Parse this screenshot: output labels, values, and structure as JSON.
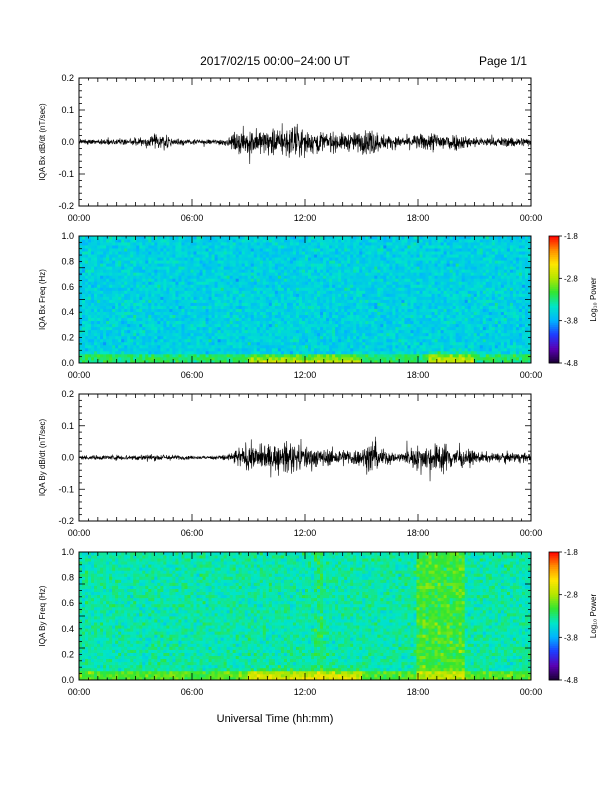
{
  "header": {
    "title": "2017/02/15  00:00−24:00 UT",
    "page": "Page 1/1"
  },
  "footer": {
    "xlabel": "Universal Time (hh:mm)"
  },
  "colors": {
    "trace": "#000000",
    "colormap": [
      "#1a0033",
      "#5a00b4",
      "#1e3cff",
      "#00b4ff",
      "#00e6c8",
      "#32e632",
      "#b4e600",
      "#ffe600",
      "#ff8c00",
      "#ff0000"
    ]
  },
  "chart_data": [
    {
      "type": "line",
      "ylabel": "IQA Bx dB/dt (nT/sec)",
      "ylim": [
        -0.2,
        0.2
      ],
      "yticks": [
        "0.2",
        "0.1",
        "0.0",
        "-0.1",
        "-0.2"
      ],
      "ytick_values": [
        0.2,
        0.1,
        0.0,
        -0.1,
        -0.2
      ],
      "xlim": [
        "00:00",
        "24:00"
      ],
      "xticks": [
        "00:00",
        "06:00",
        "12:00",
        "18:00",
        "00:00"
      ],
      "series": [
        {
          "envelope_x_hours": [
            0,
            2,
            3.5,
            4.3,
            5,
            6,
            7,
            8,
            8.5,
            9,
            10,
            11,
            11.5,
            12,
            13,
            14,
            15,
            15.5,
            16,
            17,
            18,
            19,
            20,
            21,
            22,
            23,
            24
          ],
          "envelope_amplitude": [
            0.015,
            0.015,
            0.02,
            0.04,
            0.02,
            0.012,
            0.012,
            0.02,
            0.06,
            0.06,
            0.06,
            0.07,
            0.08,
            0.06,
            0.05,
            0.04,
            0.05,
            0.07,
            0.04,
            0.025,
            0.035,
            0.05,
            0.04,
            0.025,
            0.02,
            0.025,
            0.02
          ]
        }
      ]
    },
    {
      "type": "heatmap",
      "ylabel": "IQA Bx Freq (Hz)",
      "ylim": [
        0.0,
        1.0
      ],
      "yticks": [
        "1.0",
        "0.8",
        "0.6",
        "0.4",
        "0.2",
        "0.0"
      ],
      "ytick_values": [
        1.0,
        0.8,
        0.6,
        0.4,
        0.2,
        0.0
      ],
      "xlim": [
        "00:00",
        "24:00"
      ],
      "xticks": [
        "00:00",
        "06:00",
        "12:00",
        "18:00",
        "00:00"
      ],
      "zlim": [
        -4.8,
        -1.8
      ],
      "colorbar_label": "Log₁₀ Power",
      "colorbar_ticks": [
        "-1.8",
        "-2.8",
        "-3.8",
        "-4.8"
      ],
      "colorbar_tick_values": [
        -1.8,
        -2.8,
        -3.8,
        -4.8
      ],
      "background_power": -3.6,
      "features": [
        {
          "x_hours": [
            9,
            15
          ],
          "freq_max_hz": 0.08,
          "power": -3.0
        },
        {
          "x_hours": [
            18.5,
            21
          ],
          "freq_max_hz": 0.12,
          "power": -3.0
        }
      ]
    },
    {
      "type": "line",
      "ylabel": "IQA By dB/dt (nT/sec)",
      "ylim": [
        -0.2,
        0.2
      ],
      "yticks": [
        "0.2",
        "0.1",
        "0.0",
        "-0.1",
        "-0.2"
      ],
      "ytick_values": [
        0.2,
        0.1,
        0.0,
        -0.1,
        -0.2
      ],
      "xlim": [
        "00:00",
        "24:00"
      ],
      "xticks": [
        "00:00",
        "06:00",
        "12:00",
        "18:00",
        "00:00"
      ],
      "series": [
        {
          "envelope_x_hours": [
            0,
            2,
            3.5,
            4.5,
            5.5,
            6,
            7,
            8,
            8.5,
            9,
            10,
            11,
            11.5,
            12,
            13,
            14,
            15,
            15.5,
            16,
            17,
            18,
            19,
            19.5,
            20,
            21,
            22,
            23,
            24
          ],
          "envelope_amplitude": [
            0.01,
            0.012,
            0.015,
            0.015,
            0.01,
            0.008,
            0.008,
            0.02,
            0.05,
            0.06,
            0.06,
            0.07,
            0.07,
            0.06,
            0.04,
            0.04,
            0.04,
            0.09,
            0.045,
            0.02,
            0.06,
            0.07,
            0.07,
            0.05,
            0.03,
            0.02,
            0.025,
            0.02
          ]
        }
      ]
    },
    {
      "type": "heatmap",
      "ylabel": "IQA By Freq (Hz)",
      "ylim": [
        0.0,
        1.0
      ],
      "yticks": [
        "1.0",
        "0.8",
        "0.6",
        "0.4",
        "0.2",
        "0.0"
      ],
      "ytick_values": [
        1.0,
        0.8,
        0.6,
        0.4,
        0.2,
        0.0
      ],
      "xlim": [
        "00:00",
        "24:00"
      ],
      "xticks": [
        "00:00",
        "06:00",
        "12:00",
        "18:00",
        "00:00"
      ],
      "zlim": [
        -4.8,
        -1.8
      ],
      "colorbar_label": "Log₁₀ Power",
      "colorbar_ticks": [
        "-1.8",
        "-2.8",
        "-3.8",
        "-4.8"
      ],
      "colorbar_tick_values": [
        -1.8,
        -2.8,
        -3.8,
        -4.8
      ],
      "background_power": -3.4,
      "features": [
        {
          "x_hours": [
            9,
            15
          ],
          "freq_max_hz": 0.12,
          "power": -2.9
        },
        {
          "x_hours": [
            18,
            20.5
          ],
          "freq_max_hz": 1.0,
          "power": -2.9
        },
        {
          "x_hours": [
            12.5,
            13.0
          ],
          "freq_max_hz": 1.0,
          "power": -3.2
        },
        {
          "x_hours": [
            3.5,
            4.0
          ],
          "freq_max_hz": 1.0,
          "power": -3.4
        }
      ]
    }
  ]
}
